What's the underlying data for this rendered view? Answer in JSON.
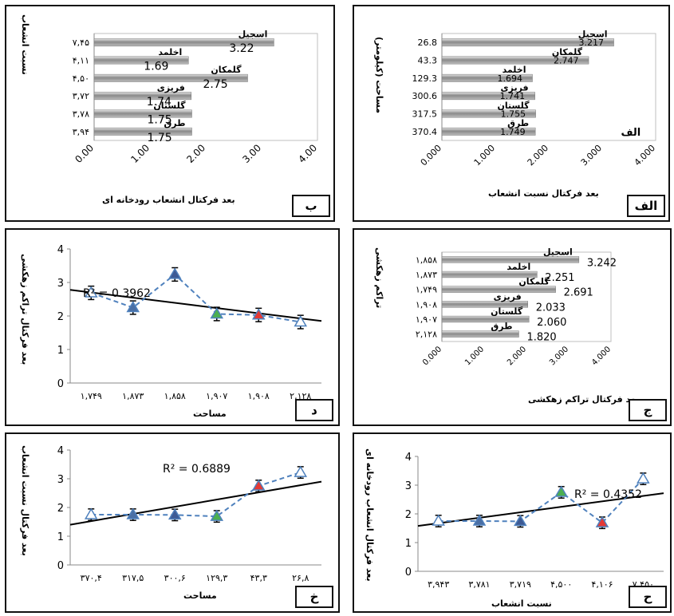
{
  "chart_data": [
    {
      "id": "alef",
      "type": "bar",
      "panel_label": "الف",
      "categories": [
        "اسجیل",
        "گلمکان",
        "اخلمد",
        "فریزی",
        "گلستان",
        "طرق"
      ],
      "values": [
        3.217,
        2.747,
        1.694,
        1.741,
        1.755,
        1.749
      ],
      "value_labels": [
        "3.217",
        "2.747",
        "1.694",
        "1.741",
        "1.755",
        "1.749"
      ],
      "side_labels": [
        "26.8",
        "43.3",
        "129.3",
        "300.6",
        "317.5",
        "370.4"
      ],
      "ticks": [
        "0.000",
        "1.000",
        "2.000",
        "3.000",
        "4.000"
      ],
      "xlim": [
        0,
        4
      ],
      "xlabel": "بعد فرکتال نسبت انشعاب",
      "ylabel": "مساحت (کیلومتر)",
      "extra_label": "الف"
    },
    {
      "id": "be",
      "type": "bar",
      "panel_label": "ب",
      "categories": [
        "اسجیل",
        "اخلمد",
        "گلمکان",
        "فریزی",
        "گلستان",
        "طرق"
      ],
      "values": [
        3.22,
        1.69,
        2.75,
        1.74,
        1.75,
        1.75
      ],
      "value_labels": [
        "3.22",
        "1.69",
        "2.75",
        "1.74",
        "1.75",
        "1.75"
      ],
      "side_labels": [
        "۷,۴۵",
        "۴,۱۱",
        "۴,۵۰",
        "۳,۷۲",
        "۳,۷۸",
        "۳,۹۴"
      ],
      "ticks": [
        "0.00",
        "1.00",
        "2.00",
        "3.00",
        "4.00"
      ],
      "xlim": [
        0,
        4
      ],
      "xlabel": "بعد فرکتال انشعاب رودخانه ای",
      "ylabel": "نسبت انشعاب"
    },
    {
      "id": "jim",
      "type": "bar",
      "panel_label": "ج",
      "categories": [
        "اسجیل",
        "اخلمد",
        "گلمکان",
        "فریزی",
        "گلستان",
        "طرق"
      ],
      "values": [
        3.242,
        2.251,
        2.691,
        2.033,
        2.06,
        1.82
      ],
      "value_labels": [
        "3.242",
        "2.251",
        "2.691",
        "2.033",
        "2.060",
        "1.820"
      ],
      "side_labels": [
        "۱,۸۵۸",
        "۱,۸۷۳",
        "۱,۷۴۹",
        "۱,۹۰۸",
        "۱,۹۰۷",
        "۲,۱۲۸"
      ],
      "ticks": [
        "0.000",
        "1.000",
        "2.000",
        "3.000",
        "4.000"
      ],
      "xlim": [
        0,
        4
      ],
      "xlabel": "بعد فرکتال تراکم زهکشی",
      "ylabel": "تراکم زهکشی"
    },
    {
      "id": "dal",
      "type": "line",
      "panel_label": "د",
      "categories": [
        "۱,۷۴۹",
        "۱,۸۷۳",
        "۱,۸۵۸",
        "۱,۹۰۷",
        "۱,۹۰۸",
        "۲,۱۲۸"
      ],
      "values": [
        2.69,
        2.25,
        3.24,
        2.06,
        2.03,
        1.82
      ],
      "marker_colors": [
        "#7fb5d5",
        "#4a6fa5",
        "#3d5a94",
        "#4caf50",
        "#e53935",
        "#7fb5d5"
      ],
      "trend": [
        2.78,
        1.85
      ],
      "r2": "R² = 0.3962",
      "ylim": [
        0,
        4
      ],
      "yticks": [
        "0",
        "1",
        "2",
        "3",
        "4"
      ],
      "xlabel": "مساحت",
      "ylabel": "بعد فرکتال تراکم زهکشی"
    },
    {
      "id": "khe",
      "type": "line",
      "panel_label": "خ",
      "categories": [
        "۳۷۰,۴",
        "۳۱۷,۵",
        "۳۰۰,۶",
        "۱۲۹,۳",
        "۴۳,۳",
        "۲۶,۸"
      ],
      "values": [
        1.75,
        1.75,
        1.74,
        1.69,
        2.75,
        3.22
      ],
      "marker_colors": [
        "#7fb5d5",
        "#4a6fa5",
        "#3d5a94",
        "#4caf50",
        "#e53935",
        "#7fb5d5"
      ],
      "trend": [
        1.4,
        2.9
      ],
      "r2": "R² = 0.6889",
      "ylim": [
        0,
        4
      ],
      "yticks": [
        "0",
        "1",
        "2",
        "3",
        "4"
      ],
      "xlabel": "مساحت",
      "ylabel": "بعد فرکتال نسبت انشعاب"
    },
    {
      "id": "he",
      "type": "line",
      "panel_label": "ح",
      "categories": [
        "۳,۹۴۳",
        "۳,۷۸۱",
        "۳,۷۱۹",
        "۴,۵۰۰",
        "۴,۱۰۶",
        "۷,۴۵۰"
      ],
      "values": [
        1.75,
        1.75,
        1.74,
        2.75,
        1.69,
        3.22
      ],
      "marker_colors": [
        "#7fb5d5",
        "#4a6fa5",
        "#3d5a94",
        "#4caf50",
        "#e53935",
        "#7fb5d5"
      ],
      "trend": [
        1.58,
        2.72
      ],
      "r2": "R² = 0.4352",
      "ylim": [
        0,
        4
      ],
      "yticks": [
        "0",
        "1",
        "2",
        "3",
        "4"
      ],
      "xlabel": "نسبت انشعاب",
      "ylabel": "بعد فرکتال انشعاب رودخانه ای"
    }
  ]
}
